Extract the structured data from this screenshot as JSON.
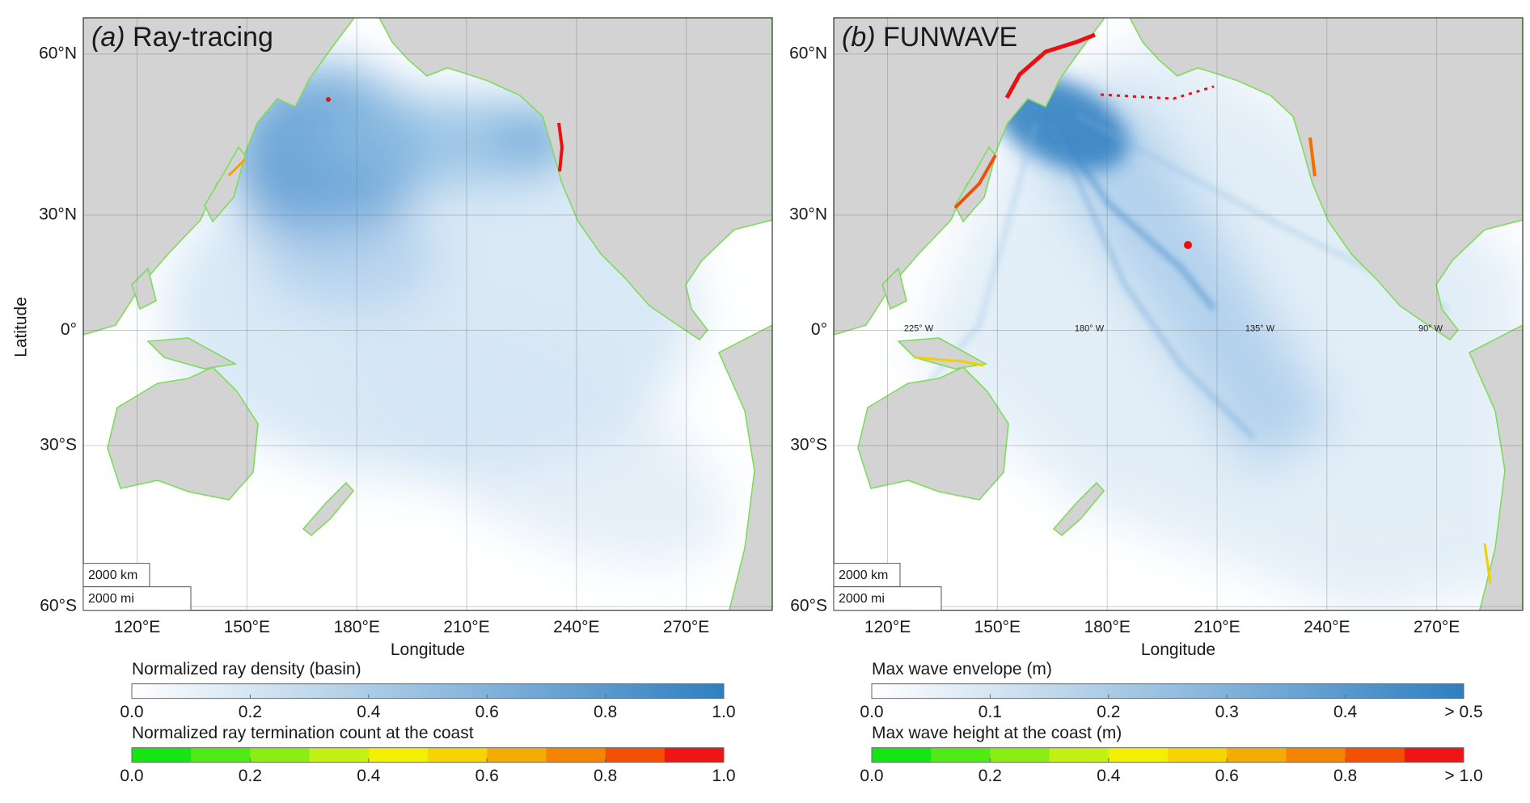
{
  "panels": [
    {
      "label": "(a)",
      "title": "Ray-tracing",
      "xlabel": "Longitude",
      "ylabel": "Latitude",
      "xlim": [
        105.3,
        293.5
      ],
      "ylim": [
        -60.5,
        64.6
      ],
      "xticks": [
        {
          "value": 120,
          "label": "120°E"
        },
        {
          "value": 150,
          "label": "150°E"
        },
        {
          "value": 180,
          "label": "180°E"
        },
        {
          "value": 210,
          "label": "210°E"
        },
        {
          "value": 240,
          "label": "240°E"
        },
        {
          "value": 270,
          "label": "270°E"
        }
      ],
      "yticks": [
        {
          "value": 60,
          "label": "60°N"
        },
        {
          "value": 30,
          "label": "30°N"
        },
        {
          "value": 0,
          "label": "0°"
        },
        {
          "value": -30,
          "label": "30°S"
        },
        {
          "value": -60,
          "label": "60°S"
        }
      ],
      "scale_km": "2000 km",
      "scale_mi": "2000 mi",
      "colorbars": [
        {
          "title": "Normalized ray density (basin)",
          "lim": [
            0,
            1
          ],
          "colors": [
            "#ffffff",
            "#2f7fc1"
          ],
          "ticks": [
            {
              "value": 0,
              "label": "0.0"
            },
            {
              "value": 0.2,
              "label": "0.2"
            },
            {
              "value": 0.4,
              "label": "0.4"
            },
            {
              "value": 0.6,
              "label": "0.6"
            },
            {
              "value": 0.8,
              "label": "0.8"
            },
            {
              "value": 1,
              "label": "1.0"
            }
          ]
        },
        {
          "title": "Normalized ray termination count at the coast",
          "lim": [
            0,
            1
          ],
          "steps": true,
          "colors": [
            "#14e614",
            "#4eec14",
            "#8aee14",
            "#c4f014",
            "#f0f000",
            "#f5d400",
            "#f5ac00",
            "#f58400",
            "#f55000",
            "#f01414"
          ],
          "ticks": [
            {
              "value": 0,
              "label": "0.0"
            },
            {
              "value": 0.2,
              "label": "0.2"
            },
            {
              "value": 0.4,
              "label": "0.4"
            },
            {
              "value": 0.6,
              "label": "0.6"
            },
            {
              "value": 0.8,
              "label": "0.8"
            },
            {
              "value": 1,
              "label": "1.0"
            }
          ]
        }
      ]
    },
    {
      "label": "(b)",
      "title": "FUNWAVE",
      "xlabel": "Longitude",
      "xlim": [
        105.3,
        293.5
      ],
      "ylim": [
        -60.5,
        64.6
      ],
      "xticks": [
        {
          "value": 120,
          "label": "120°E"
        },
        {
          "value": 150,
          "label": "150°E"
        },
        {
          "value": 180,
          "label": "180°E"
        },
        {
          "value": 210,
          "label": "210°E"
        },
        {
          "value": 240,
          "label": "240°E"
        },
        {
          "value": 270,
          "label": "270°E"
        }
      ],
      "yticks": [
        {
          "value": 60,
          "label": "60°N"
        },
        {
          "value": 30,
          "label": "30°N"
        },
        {
          "value": 0,
          "label": "0°"
        },
        {
          "value": -30,
          "label": "30°S"
        },
        {
          "value": -60,
          "label": "60°S"
        }
      ],
      "inner_labels": [
        "225° W",
        "180° W",
        "135° W",
        "90° W"
      ],
      "scale_km": "2000 km",
      "scale_mi": "2000 mi",
      "colorbars": [
        {
          "title": "Max wave envelope (m)",
          "lim": [
            0,
            0.5
          ],
          "colors": [
            "#ffffff",
            "#2f7fc1"
          ],
          "ticks": [
            {
              "value": 0,
              "label": "0.0"
            },
            {
              "value": 0.1,
              "label": "0.1"
            },
            {
              "value": 0.2,
              "label": "0.2"
            },
            {
              "value": 0.3,
              "label": "0.3"
            },
            {
              "value": 0.4,
              "label": "0.4"
            },
            {
              "value": 0.5,
              "label": "> 0.5"
            }
          ]
        },
        {
          "title": "Max wave height at the coast (m)",
          "lim": [
            0,
            1
          ],
          "steps": true,
          "colors": [
            "#14e614",
            "#4eec14",
            "#8aee14",
            "#c4f014",
            "#f0f000",
            "#f5d400",
            "#f5ac00",
            "#f58400",
            "#f55000",
            "#f01414"
          ],
          "ticks": [
            {
              "value": 0,
              "label": "0.0"
            },
            {
              "value": 0.2,
              "label": "0.2"
            },
            {
              "value": 0.4,
              "label": "0.4"
            },
            {
              "value": 0.6,
              "label": "0.6"
            },
            {
              "value": 0.8,
              "label": "0.8"
            },
            {
              "value": 1,
              "label": "> 1.0"
            }
          ]
        }
      ]
    }
  ]
}
